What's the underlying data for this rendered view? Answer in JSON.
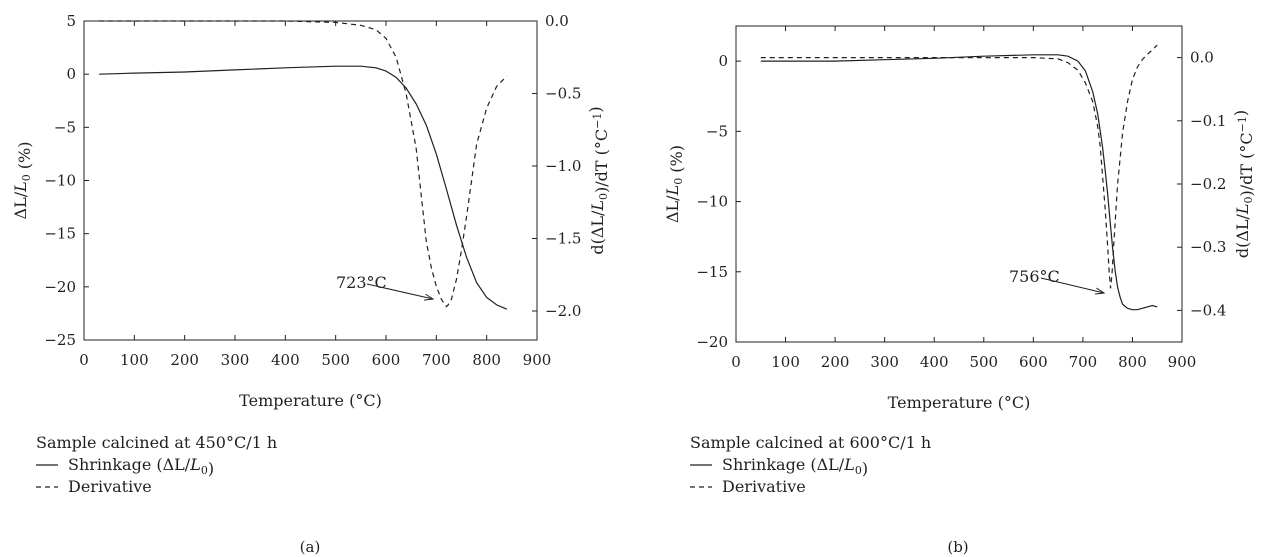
{
  "chart_data": [
    {
      "type": "line",
      "panel_label": "(a)",
      "xlabel": "Temperature (°C)",
      "ylabel": "ΔL/L0 (%)",
      "y2label": "d(ΔL/L0)/dT (°C−1)",
      "xlim": [
        0,
        900
      ],
      "ylim": [
        -25,
        5
      ],
      "y2lim": [
        -2.2,
        0.0
      ],
      "xticks": [
        "0",
        "100",
        "200",
        "300",
        "400",
        "500",
        "600",
        "700",
        "800",
        "900"
      ],
      "yticks": [
        "5",
        "0",
        "−5",
        "−10",
        "−15",
        "−20",
        "−25"
      ],
      "y2ticks": [
        "0.0",
        "−0.5",
        "−1.0",
        "−1.5",
        "−2.0"
      ],
      "annotation": "723°C",
      "legend_title": "Sample calcined at 450°C/1 h",
      "legend": [
        "Shrinkage (ΔL/L0)",
        "Derivative"
      ],
      "grid": false,
      "series": [
        {
          "name": "Shrinkage (ΔL/L0)",
          "axis": "left",
          "style": "solid",
          "x": [
            30,
            100,
            200,
            300,
            400,
            500,
            550,
            580,
            600,
            620,
            640,
            660,
            680,
            700,
            720,
            740,
            760,
            780,
            800,
            820,
            840
          ],
          "y": [
            0,
            0.1,
            0.2,
            0.4,
            0.6,
            0.75,
            0.75,
            0.6,
            0.3,
            -0.3,
            -1.3,
            -2.8,
            -4.8,
            -7.5,
            -10.8,
            -14.2,
            -17.2,
            -19.6,
            -21.0,
            -21.7,
            -22.1
          ]
        },
        {
          "name": "Derivative",
          "axis": "right",
          "style": "dashed",
          "x": [
            30,
            100,
            200,
            300,
            400,
            500,
            550,
            580,
            600,
            620,
            640,
            660,
            670,
            680,
            690,
            700,
            710,
            720,
            723,
            730,
            740,
            750,
            760,
            770,
            780,
            800,
            820,
            840
          ],
          "y": [
            0.0,
            0.0,
            0.0,
            0.0,
            0.0,
            -0.01,
            -0.03,
            -0.06,
            -0.12,
            -0.25,
            -0.5,
            -0.88,
            -1.2,
            -1.52,
            -1.7,
            -1.83,
            -1.92,
            -1.97,
            -1.96,
            -1.92,
            -1.78,
            -1.58,
            -1.35,
            -1.1,
            -0.85,
            -0.6,
            -0.45,
            -0.38
          ]
        }
      ]
    },
    {
      "type": "line",
      "panel_label": "(b)",
      "xlabel": "Temperature (°C)",
      "ylabel": "ΔL/L0 (%)",
      "y2label": "d(ΔL/L0)/dT (°C−1)",
      "xlim": [
        0,
        900
      ],
      "ylim": [
        -20,
        2.5
      ],
      "y2lim": [
        -0.45,
        0.05
      ],
      "xticks": [
        "0",
        "100",
        "200",
        "300",
        "400",
        "500",
        "600",
        "700",
        "800",
        "900"
      ],
      "yticks": [
        "0",
        "−5",
        "−10",
        "−15",
        "−20"
      ],
      "y2ticks": [
        "0.0",
        "−0.1",
        "−0.2",
        "−0.3",
        "−0.4"
      ],
      "annotation": "756°C",
      "legend_title": "Sample calcined at 600°C/1 h",
      "legend": [
        "Shrinkage (ΔL/L0)",
        "Derivative"
      ],
      "grid": false,
      "series": [
        {
          "name": "Shrinkage (ΔL/L0)",
          "axis": "left",
          "style": "solid",
          "x": [
            50,
            100,
            200,
            300,
            400,
            500,
            600,
            650,
            670,
            690,
            705,
            720,
            730,
            740,
            745,
            750,
            755,
            760,
            765,
            770,
            775,
            780,
            790,
            800,
            810,
            820,
            830,
            840,
            850
          ],
          "y": [
            0.0,
            0.0,
            0.0,
            0.1,
            0.2,
            0.35,
            0.45,
            0.45,
            0.35,
            0.0,
            -0.7,
            -2.2,
            -3.8,
            -6.2,
            -7.8,
            -9.5,
            -11.4,
            -13.3,
            -14.9,
            -16.1,
            -16.8,
            -17.3,
            -17.6,
            -17.7,
            -17.7,
            -17.6,
            -17.5,
            -17.4,
            -17.5
          ]
        },
        {
          "name": "Derivative",
          "axis": "right",
          "style": "dashed",
          "x": [
            50,
            100,
            200,
            300,
            400,
            500,
            600,
            650,
            670,
            690,
            705,
            720,
            730,
            735,
            740,
            745,
            750,
            753,
            756,
            759,
            762,
            766,
            770,
            775,
            780,
            790,
            800,
            810,
            820,
            830,
            840,
            850
          ],
          "y": [
            0.0,
            0.0,
            0.0,
            0.0,
            0.0,
            0.0,
            0.0,
            -0.002,
            -0.008,
            -0.02,
            -0.04,
            -0.07,
            -0.11,
            -0.14,
            -0.19,
            -0.24,
            -0.3,
            -0.34,
            -0.365,
            -0.34,
            -0.3,
            -0.25,
            -0.2,
            -0.16,
            -0.12,
            -0.07,
            -0.035,
            -0.015,
            -0.003,
            0.005,
            0.012,
            0.02
          ]
        }
      ]
    }
  ]
}
